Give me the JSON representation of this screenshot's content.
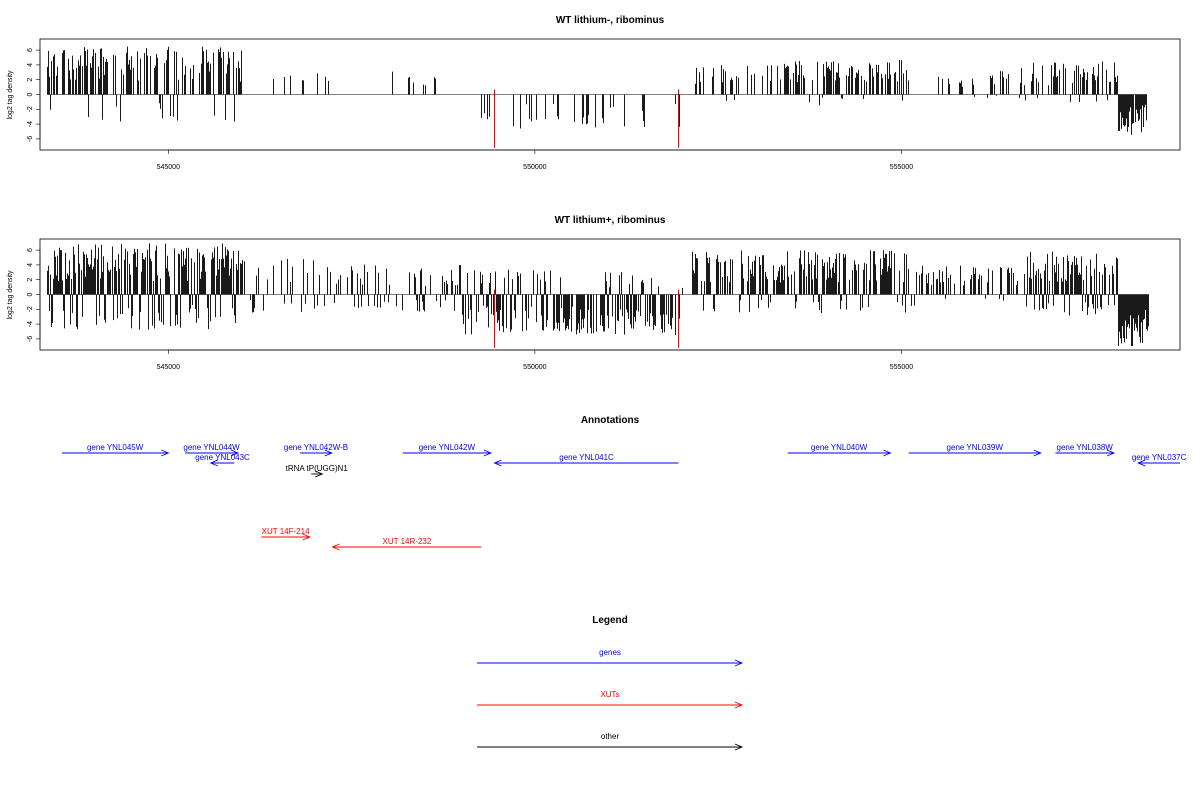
{
  "chart_data": [
    {
      "type": "bar",
      "title": "WT lithium-, ribominus",
      "ylabel": "log2 tag density",
      "xlabel": "",
      "xlim": [
        543250,
        558800
      ],
      "ylim": [
        -7.5,
        7.5
      ],
      "xticks": [
        545000,
        550000,
        555000
      ],
      "xtick_labels": [
        "545000",
        "550000",
        "555000"
      ],
      "yticks": [
        6,
        4,
        2,
        0,
        -2,
        -4,
        -6
      ],
      "ytick_labels": [
        "6",
        "4",
        "2",
        "0",
        "-2",
        "-4",
        "-6"
      ],
      "bar_color": "#000000",
      "marker_color": "#ff0000",
      "markers": [
        {
          "x": 549450,
          "y": -7.2
        },
        {
          "x": 551960,
          "y": -7.2
        }
      ],
      "segments": [
        {
          "x0": 543350,
          "x1": 546000,
          "max": 6.5,
          "min": -4.0,
          "density": 0.62,
          "pos": 0.78,
          "seed": 11
        },
        {
          "x0": 546400,
          "x1": 547200,
          "max": 3.5,
          "min": -0.5,
          "density": 0.12,
          "pos": 0.95,
          "seed": 12
        },
        {
          "x0": 548000,
          "x1": 548900,
          "max": 3.2,
          "min": -0.5,
          "density": 0.12,
          "pos": 0.95,
          "seed": 13
        },
        {
          "x0": 549200,
          "x1": 552000,
          "max": 1.0,
          "min": -4.8,
          "density": 0.16,
          "pos": 0.05,
          "seed": 14
        },
        {
          "x0": 552180,
          "x1": 553400,
          "max": 4.0,
          "min": -1.0,
          "density": 0.28,
          "pos": 0.9,
          "seed": 15
        },
        {
          "x0": 553400,
          "x1": 555100,
          "max": 4.8,
          "min": -1.5,
          "density": 0.55,
          "pos": 0.85,
          "seed": 16
        },
        {
          "x0": 555400,
          "x1": 556500,
          "max": 3.3,
          "min": -0.5,
          "density": 0.22,
          "pos": 0.92,
          "seed": 17
        },
        {
          "x0": 556600,
          "x1": 557950,
          "max": 4.5,
          "min": -1.2,
          "density": 0.55,
          "pos": 0.85,
          "seed": 18
        },
        {
          "x0": 557950,
          "x1": 558350,
          "max": 0.3,
          "min": -5.5,
          "density": 0.95,
          "pos": 0.0,
          "seed": 19
        }
      ]
    },
    {
      "type": "bar",
      "title": "WT lithium+, ribominus",
      "ylabel": "log2 tag density",
      "xlabel": "",
      "xlim": [
        543250,
        558800
      ],
      "ylim": [
        -7.5,
        7.5
      ],
      "xticks": [
        545000,
        550000,
        555000
      ],
      "xtick_labels": [
        "545000",
        "550000",
        "555000"
      ],
      "yticks": [
        6,
        4,
        2,
        0,
        -2,
        -4,
        -6
      ],
      "ytick_labels": [
        "6",
        "4",
        "2",
        "0",
        "-2",
        "-4",
        "-6"
      ],
      "bar_color": "#000000",
      "marker_color": "#ff0000",
      "markers": [
        {
          "x": 549450,
          "y": -7.2
        },
        {
          "x": 551960,
          "y": -7.2
        }
      ],
      "segments": [
        {
          "x0": 543350,
          "x1": 546000,
          "max": 7.0,
          "min": -5.0,
          "density": 0.9,
          "pos": 0.72,
          "seed": 21
        },
        {
          "x0": 546000,
          "x1": 547200,
          "max": 5.0,
          "min": -2.5,
          "density": 0.3,
          "pos": 0.5,
          "seed": 22
        },
        {
          "x0": 547200,
          "x1": 549000,
          "max": 4.2,
          "min": -2.5,
          "density": 0.4,
          "pos": 0.5,
          "seed": 23
        },
        {
          "x0": 549000,
          "x1": 552050,
          "max": 3.5,
          "min": -5.5,
          "density": 0.65,
          "pos": 0.2,
          "seed": 24
        },
        {
          "x0": 552150,
          "x1": 555200,
          "max": 6.0,
          "min": -2.5,
          "density": 0.7,
          "pos": 0.82,
          "seed": 25
        },
        {
          "x0": 555200,
          "x1": 556700,
          "max": 4.0,
          "min": -1.0,
          "density": 0.35,
          "pos": 0.85,
          "seed": 26
        },
        {
          "x0": 556700,
          "x1": 557950,
          "max": 5.8,
          "min": -3.0,
          "density": 0.8,
          "pos": 0.7,
          "seed": 27
        },
        {
          "x0": 557950,
          "x1": 558380,
          "max": 0.5,
          "min": -7.0,
          "density": 0.98,
          "pos": 0.0,
          "seed": 28
        }
      ]
    },
    {
      "type": "annotation_track",
      "title": "Annotations",
      "xlim": [
        543250,
        558800
      ],
      "features": [
        {
          "label": "gene YNL045W",
          "x0": 543300,
          "x1": 545000,
          "strand": "+",
          "row": 0,
          "color": "#0000ff"
        },
        {
          "label": "gene YNL044W",
          "x0": 545230,
          "x1": 545950,
          "strand": "+",
          "row": 0,
          "color": "#0000ff"
        },
        {
          "label": "gene YNL043C",
          "x0": 545580,
          "x1": 545900,
          "strand": "-",
          "row": 1,
          "color": "#0000ff"
        },
        {
          "label": "gene YNL042W-B",
          "x0": 546800,
          "x1": 547230,
          "strand": "+",
          "row": 0,
          "color": "#0000ff"
        },
        {
          "label": "tRNA tP(UGG)N1",
          "x0": 546950,
          "x1": 547100,
          "strand": "+",
          "row": 2,
          "color": "#000000"
        },
        {
          "label": "gene YNL042W",
          "x0": 548200,
          "x1": 549400,
          "strand": "+",
          "row": 0,
          "color": "#0000ff"
        },
        {
          "label": "gene YNL041C",
          "x0": 549450,
          "x1": 551960,
          "strand": "-",
          "row": 1,
          "color": "#0000ff"
        },
        {
          "label": "gene YNL040W",
          "x0": 553450,
          "x1": 554850,
          "strand": "+",
          "row": 0,
          "color": "#0000ff"
        },
        {
          "label": "gene YNL039W",
          "x0": 555100,
          "x1": 556900,
          "strand": "+",
          "row": 0,
          "color": "#0000ff"
        },
        {
          "label": "gene YNL038W",
          "x0": 557100,
          "x1": 557900,
          "strand": "+",
          "row": 0,
          "color": "#0000ff"
        },
        {
          "label": "gene YNL037C",
          "x0": 558230,
          "x1": 559200,
          "strand": "-",
          "row": 1,
          "color": "#0000ff"
        },
        {
          "label": "XUT 14F-214",
          "x0": 546270,
          "x1": 546930,
          "strand": "+",
          "row": 3,
          "color": "#ff0000"
        },
        {
          "label": "XUT 14R-232",
          "x0": 547240,
          "x1": 549270,
          "strand": "-",
          "row": 4,
          "color": "#ff0000"
        }
      ]
    },
    {
      "type": "legend",
      "title": "Legend",
      "entries": [
        {
          "label": "genes",
          "color": "#0000ff"
        },
        {
          "label": "XUTs",
          "color": "#ff0000"
        },
        {
          "label": "other",
          "color": "#000000"
        }
      ]
    }
  ]
}
